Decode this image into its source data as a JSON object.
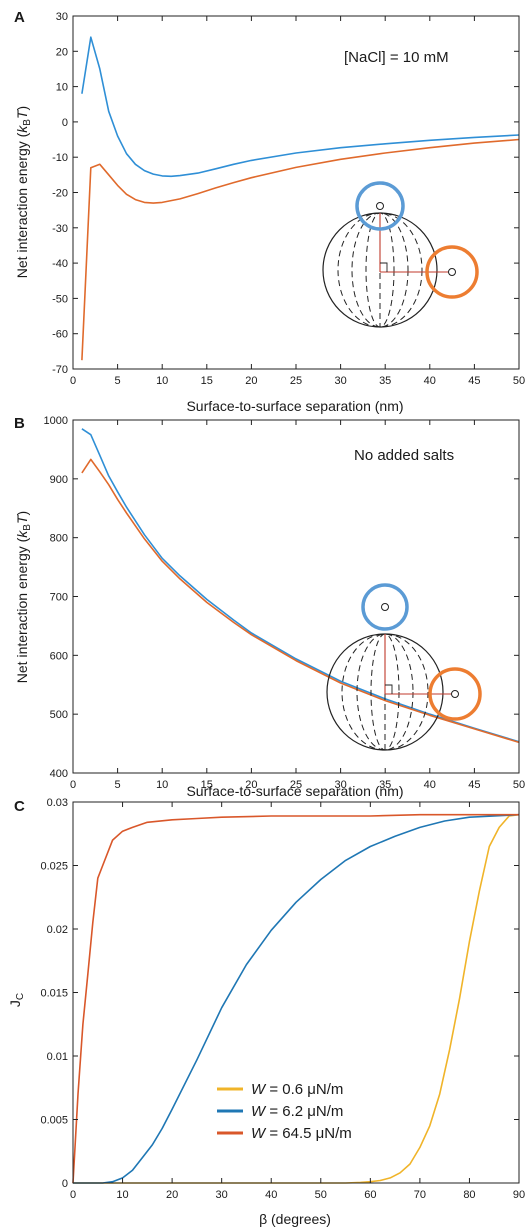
{
  "chart_data": [
    {
      "panel": "A",
      "type": "line",
      "annotation": "[NaCl] = 10 mM",
      "xlabel": "Surface-to-surface separation (nm)",
      "ylabel": "Net interaction energy (kBT)",
      "xlim": [
        0,
        50
      ],
      "ylim": [
        -70,
        30
      ],
      "xticks": [
        0,
        5,
        10,
        15,
        20,
        25,
        30,
        35,
        40,
        45,
        50
      ],
      "yticks": [
        -70,
        -60,
        -50,
        -40,
        -30,
        -20,
        -10,
        0,
        10,
        20,
        30
      ],
      "grid": false,
      "series": [
        {
          "color": "#2f8fd6",
          "x": [
            1,
            2,
            3,
            4,
            5,
            6,
            7,
            8,
            9,
            10,
            11,
            12,
            14,
            16,
            18,
            20,
            25,
            30,
            35,
            40,
            45,
            50
          ],
          "y": [
            8,
            24,
            15,
            3,
            -4,
            -9,
            -12,
            -13.8,
            -14.8,
            -15.3,
            -15.4,
            -15.2,
            -14.5,
            -13.3,
            -12,
            -10.9,
            -8.8,
            -7.3,
            -6.2,
            -5.2,
            -4.4,
            -3.7
          ]
        },
        {
          "color": "#e06a2c",
          "x": [
            1,
            2,
            3,
            4,
            5,
            6,
            7,
            8,
            9,
            10,
            12,
            14,
            16,
            18,
            20,
            25,
            30,
            35,
            40,
            45,
            50
          ],
          "y": [
            -67.5,
            -13,
            -12,
            -15,
            -18,
            -20.5,
            -22,
            -22.8,
            -23,
            -22.8,
            -21.8,
            -20.3,
            -18.7,
            -17.2,
            -15.8,
            -12.9,
            -10.6,
            -8.8,
            -7.3,
            -6,
            -5
          ]
        }
      ]
    },
    {
      "panel": "B",
      "type": "line",
      "annotation": "No added salts",
      "xlabel": "Surface-to-surface separation (nm)",
      "ylabel": "Net interaction energy (kBT)",
      "xlim": [
        0,
        50
      ],
      "ylim": [
        400,
        1000
      ],
      "xticks": [
        0,
        5,
        10,
        15,
        20,
        25,
        30,
        35,
        40,
        45,
        50
      ],
      "yticks": [
        400,
        500,
        600,
        700,
        800,
        900,
        1000
      ],
      "grid": false,
      "series": [
        {
          "color": "#2f8fd6",
          "x": [
            1,
            2,
            3,
            4,
            5,
            6,
            8,
            10,
            12,
            15,
            18,
            20,
            25,
            30,
            35,
            40,
            45,
            50
          ],
          "y": [
            985,
            975,
            940,
            905,
            878,
            852,
            805,
            765,
            735,
            695,
            660,
            638,
            594,
            556,
            526,
            500,
            476,
            453
          ]
        },
        {
          "color": "#e06a2c",
          "x": [
            1,
            2,
            3,
            4,
            5,
            6,
            8,
            10,
            12,
            15,
            18,
            20,
            25,
            30,
            35,
            40,
            45,
            50
          ],
          "y": [
            910,
            933,
            912,
            890,
            865,
            842,
            798,
            760,
            730,
            690,
            656,
            635,
            591,
            553,
            523,
            498,
            475,
            452
          ]
        }
      ]
    },
    {
      "panel": "C",
      "type": "line",
      "xlabel": "β (degrees)",
      "ylabel": "J",
      "ylabel_sub": "C",
      "xlim": [
        0,
        90
      ],
      "ylim": [
        0,
        0.03
      ],
      "xticks": [
        0,
        10,
        20,
        30,
        40,
        50,
        60,
        70,
        80,
        90
      ],
      "yticks": [
        "0",
        "0.005",
        "0.01",
        "0.015",
        "0.02",
        "0.025",
        "0.03"
      ],
      "grid": false,
      "legend_placement": "bottom-center",
      "series": [
        {
          "name_prefix": "W",
          "name": " = 0.6 μN/m",
          "color": "#f0b429",
          "x": [
            0,
            55,
            58,
            60,
            62,
            64,
            66,
            68,
            70,
            72,
            74,
            76,
            78,
            80,
            82,
            84,
            86,
            88,
            90
          ],
          "y": [
            0,
            0,
            5e-05,
            0.0001,
            0.0002,
            0.0004,
            0.0008,
            0.0015,
            0.0028,
            0.0045,
            0.007,
            0.0105,
            0.0145,
            0.019,
            0.023,
            0.0265,
            0.028,
            0.0289,
            0.029
          ]
        },
        {
          "name_prefix": "W",
          "name": " = 6.2 μN/m",
          "color": "#1f77b4",
          "x": [
            0,
            6,
            8,
            10,
            12,
            14,
            16,
            18,
            20,
            25,
            30,
            35,
            40,
            45,
            50,
            55,
            60,
            65,
            70,
            75,
            80,
            85,
            90
          ],
          "y": [
            0,
            0,
            0.0001,
            0.0004,
            0.001,
            0.002,
            0.003,
            0.0043,
            0.0058,
            0.0097,
            0.0138,
            0.0172,
            0.0199,
            0.0221,
            0.0239,
            0.0254,
            0.0265,
            0.0273,
            0.028,
            0.0285,
            0.0288,
            0.0289,
            0.029
          ]
        },
        {
          "name_prefix": "W",
          "name": " = 64.5 μN/m",
          "color": "#d9572a",
          "x": [
            0,
            1,
            2,
            3,
            4,
            5,
            6,
            8,
            10,
            12,
            15,
            20,
            25,
            30,
            40,
            50,
            60,
            70,
            80,
            90
          ],
          "y": [
            0,
            0.007,
            0.0125,
            0.0165,
            0.0205,
            0.024,
            0.025,
            0.027,
            0.0277,
            0.028,
            0.0284,
            0.0286,
            0.0287,
            0.0288,
            0.0289,
            0.0289,
            0.0289,
            0.029,
            0.029,
            0.029
          ]
        }
      ]
    }
  ]
}
